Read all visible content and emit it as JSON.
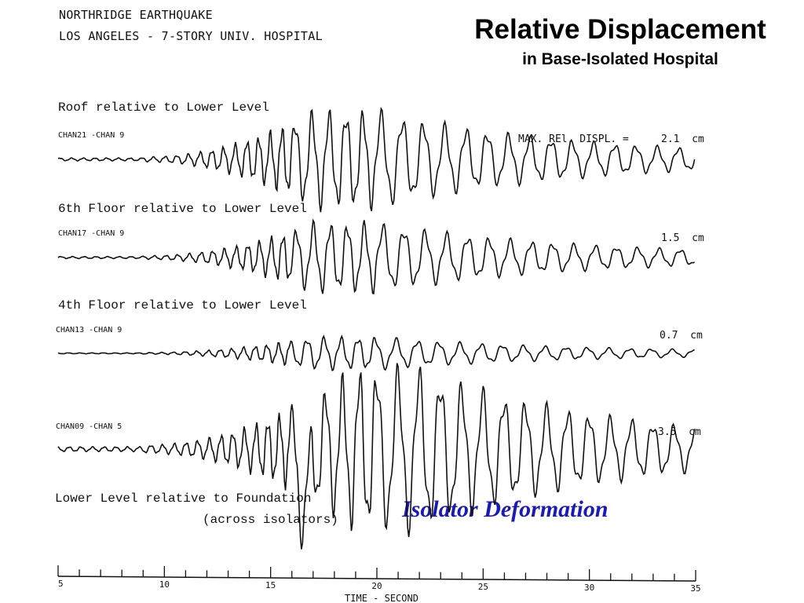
{
  "header": {
    "line1": "NORTHRIDGE EARTHQUAKE",
    "line2": "LOS ANGELES - 7-STORY UNIV. HOSPITAL"
  },
  "title": "Relative Displacement",
  "subtitle": "in Base-Isolated Hospital",
  "panels": [
    {
      "label": "Roof relative to Lower Level",
      "channel": "CHAN21 -CHAN 9",
      "max_text": "MAX. REl. DISPL. =",
      "max_value": "2.1  cm",
      "max_displacement_cm": 2.1
    },
    {
      "label": "6th Floor relative to Lower Level",
      "channel": "CHAN17 -CHAN 9",
      "max_value": "1.5  cm",
      "max_displacement_cm": 1.5
    },
    {
      "label": "4th Floor relative to Lower Level",
      "channel": "CHAN13 -CHAN 9",
      "max_value": "0.7  cm",
      "max_displacement_cm": 0.7
    },
    {
      "label": "Lower Level relative to Foundation",
      "label2": "(across isolators)",
      "channel": "CHAN09 -CHAN 5",
      "max_value": "3.5  cm",
      "max_displacement_cm": 3.5
    }
  ],
  "annotation": "Isolator Deformation",
  "colors": {
    "annotation": "#1a1ab8",
    "trace": "#111111"
  },
  "chart_data": {
    "type": "line",
    "xlabel": "TIME - SECOND",
    "xlim": [
      5,
      35
    ],
    "xticks": [
      5,
      10,
      15,
      20,
      25,
      30,
      35
    ],
    "series": [
      {
        "name": "CHAN21 -CHAN 9",
        "max_abs": 2.1
      },
      {
        "name": "CHAN17 -CHAN 9",
        "max_abs": 1.5
      },
      {
        "name": "CHAN13 -CHAN 9",
        "max_abs": 0.7
      },
      {
        "name": "CHAN09 -CHAN 5",
        "max_abs": 3.5
      }
    ]
  }
}
